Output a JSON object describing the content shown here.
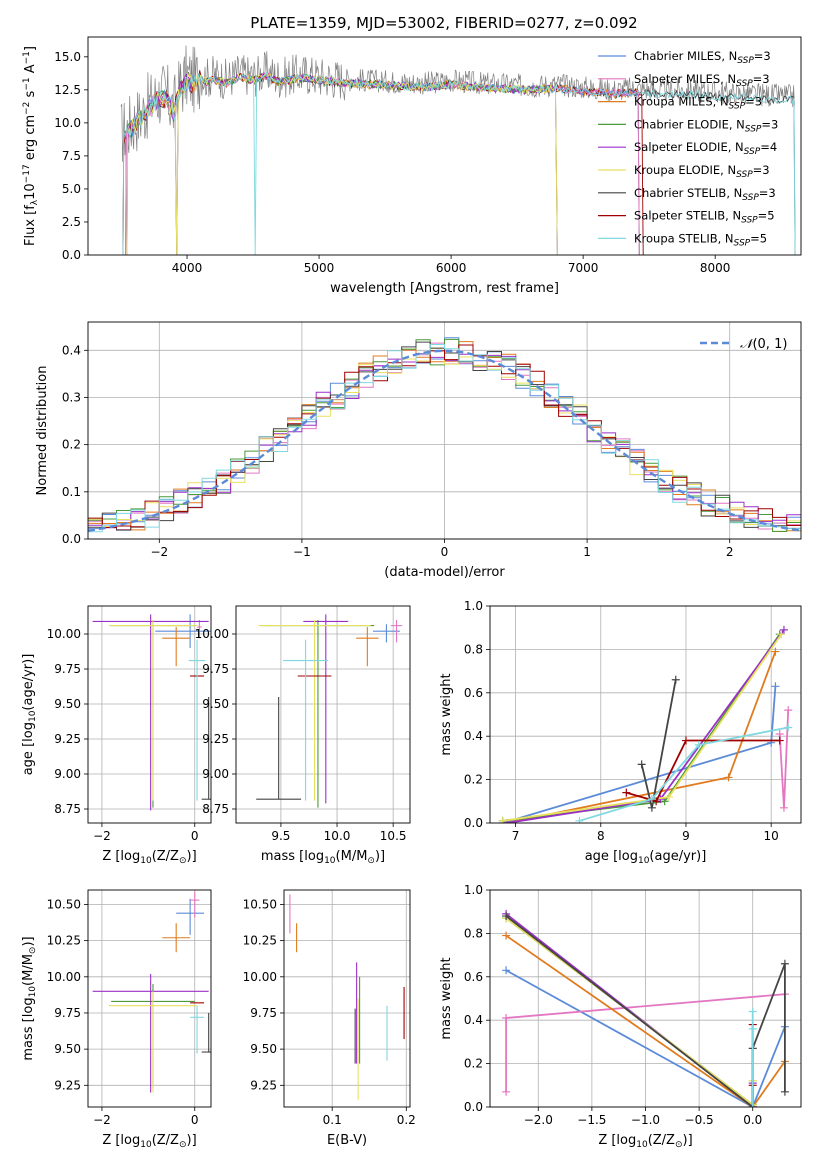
{
  "figure": {
    "title": "PLATE=1359, MJD=53002, FIBERID=0277, z=0.092"
  },
  "colors": {
    "Chabrier MILES": "#5b8bd8",
    "Salpeter MILES": "#e377c2",
    "Kroupa MILES": "#e07b1e",
    "Chabrier ELODIE": "#4a9a3a",
    "Salpeter ELODIE": "#9b30c8",
    "Kroupa ELODIE": "#e8e060",
    "Chabrier STELIB": "#444444",
    "Salpeter STELIB": "#a00000",
    "Kroupa STELIB": "#80d8e0",
    "normal": "#5b8bd8",
    "data": "#808080"
  },
  "chart_data": [
    {
      "id": "spectrum",
      "type": "line",
      "xlabel": "wavelength [Angstrom, rest frame]",
      "ylabel": "Flux [f$_\\lambda$10$^{-17}$ erg cm$^{-2}$ s$^{-1}$ A$^{-1}$]",
      "ylabel_parts": [
        "Flux [f",
        "λ",
        "10",
        "−17",
        " erg cm",
        "−2",
        " s",
        "−1",
        " A",
        "−1",
        "]"
      ],
      "xlim": [
        3250,
        8650
      ],
      "ylim": [
        0,
        16.5
      ],
      "xticks": [
        4000,
        5000,
        6000,
        7000,
        8000
      ],
      "yticks": [
        0.0,
        2.5,
        5.0,
        7.5,
        10.0,
        12.5,
        15.0
      ],
      "ytick_labels": [
        "0.0",
        "2.5",
        "5.0",
        "7.5",
        "10.0",
        "12.5",
        "15.0"
      ],
      "data_series": {
        "name": "data",
        "x": [
          3500,
          3550,
          3600,
          3650,
          3700,
          3750,
          3800,
          3850,
          3900,
          3950,
          4000,
          4050,
          4100,
          4150,
          4200,
          4300,
          4400,
          4500,
          4600,
          4700,
          4800,
          4900,
          5000,
          5200,
          5400,
          5600,
          5800,
          6000,
          6200,
          6400,
          6600,
          6800,
          7000,
          7200,
          7400,
          7600,
          7800,
          8000,
          8200,
          8400,
          8600
        ],
        "y": [
          9.2,
          9.6,
          10.1,
          10.6,
          11.2,
          11.8,
          12.2,
          12.0,
          11.0,
          12.8,
          13.5,
          13.2,
          13.7,
          13.4,
          13.6,
          13.3,
          13.8,
          13.5,
          13.9,
          13.4,
          13.6,
          13.7,
          13.5,
          13.3,
          13.2,
          13.1,
          13.0,
          13.2,
          13.0,
          12.9,
          12.8,
          12.9,
          12.7,
          12.5,
          12.6,
          12.4,
          12.5,
          12.3,
          12.2,
          12.1,
          12.0
        ]
      },
      "models": [
        {
          "name": "Chabrier MILES",
          "label": "Chabrier MILES, N",
          "nssp": "=3"
        },
        {
          "name": "Salpeter MILES",
          "label": "Salpeter MILES, N",
          "nssp": "=3"
        },
        {
          "name": "Kroupa MILES",
          "label": "Kroupa MILES, N",
          "nssp": "=3"
        },
        {
          "name": "Chabrier ELODIE",
          "label": "Chabrier ELODIE, N",
          "nssp": "=3"
        },
        {
          "name": "Salpeter ELODIE",
          "label": "Salpeter ELODIE, N",
          "nssp": "=4"
        },
        {
          "name": "Kroupa ELODIE",
          "label": "Kroupa ELODIE, N",
          "nssp": "=3"
        },
        {
          "name": "Chabrier STELIB",
          "label": "Chabrier STELIB, N",
          "nssp": "=3"
        },
        {
          "name": "Salpeter STELIB",
          "label": "Salpeter STELIB, N",
          "nssp": "=5"
        },
        {
          "name": "Kroupa STELIB",
          "label": "Kroupa STELIB, N",
          "nssp": "=5"
        }
      ],
      "nssp_subscript": "SSP",
      "legend": "top-right"
    },
    {
      "id": "residuals",
      "type": "line",
      "xlabel": "(data-model)/error",
      "ylabel": "Normed distribution",
      "xlim": [
        -2.5,
        2.5
      ],
      "ylim": [
        0,
        0.46
      ],
      "xticks": [
        -2,
        -1,
        0,
        1,
        2
      ],
      "xtick_labels": [
        "−2",
        "−1",
        "0",
        "1",
        "2"
      ],
      "yticks": [
        0.0,
        0.1,
        0.2,
        0.3,
        0.4
      ],
      "ytick_labels": [
        "0.0",
        "0.1",
        "0.2",
        "0.3",
        "0.4"
      ],
      "grid": true,
      "bin_width": 0.1,
      "normal_label": "(0, 1)",
      "normal_label_script": "𝒩",
      "legend": "top-right"
    },
    {
      "id": "age-vs-Z",
      "type": "scatter",
      "xlabel": "Z [log",
      "xlabel_sub": "10",
      "xlabel_tail": "(Z/Z",
      "xlabel_sun": "⊙",
      "xlabel_end": ")]",
      "ylabel": "age  [log",
      "ylabel_sub": "10",
      "ylabel_tail": "(age/yr)]",
      "xlim": [
        -2.3,
        0.35
      ],
      "ylim": [
        8.65,
        10.2
      ],
      "xticks": [
        -2,
        0
      ],
      "xtick_labels": [
        "−2",
        "0"
      ],
      "yticks": [
        8.75,
        9.0,
        9.25,
        9.5,
        9.75,
        10.0
      ],
      "ytick_labels": [
        "8.75",
        "9.00",
        "9.25",
        "9.50",
        "9.75",
        "10.00"
      ],
      "grid": true,
      "points": [
        {
          "model": "Chabrier MILES",
          "x": -0.1,
          "y": 10.02,
          "xerr": 0.75,
          "yerr": [
            0.12,
            0.12
          ]
        },
        {
          "model": "Salpeter MILES",
          "x": 0.1,
          "y": 10.05,
          "xerr": 0.05,
          "yerr": [
            0.08,
            0.05
          ]
        },
        {
          "model": "Kroupa MILES",
          "x": -0.4,
          "y": 9.97,
          "xerr": 0.3,
          "yerr": [
            0.2,
            0.08
          ]
        },
        {
          "model": "Chabrier ELODIE",
          "x": -0.9,
          "y": 10.06,
          "xerr": 0.9,
          "yerr": [
            1.3,
            0.04
          ]
        },
        {
          "model": "Salpeter ELODIE",
          "x": -0.95,
          "y": 10.09,
          "xerr": 1.25,
          "yerr": [
            1.35,
            0.05
          ]
        },
        {
          "model": "Kroupa ELODIE",
          "x": -0.9,
          "y": 10.06,
          "xerr": 0.95,
          "yerr": [
            1.25,
            0.04
          ]
        },
        {
          "model": "Chabrier STELIB",
          "x": 0.3,
          "y": 8.82,
          "xerr": 0.15,
          "yerr": [
            0.0,
            0.73
          ]
        },
        {
          "model": "Salpeter STELIB",
          "x": 0.05,
          "y": 9.7,
          "xerr": 0.15,
          "yerr": [
            0.0,
            0.0
          ]
        },
        {
          "model": "Kroupa STELIB",
          "x": 0.05,
          "y": 9.81,
          "xerr": 0.18,
          "yerr": [
            1.0,
            0.15
          ]
        }
      ]
    },
    {
      "id": "age-vs-mass",
      "type": "scatter",
      "xlabel": "mass [log",
      "xlabel_sub": "10",
      "xlabel_tail": "(M/M",
      "xlabel_sun": "⊙",
      "xlabel_end": ")]",
      "xlim": [
        9.1,
        10.65
      ],
      "ylim": [
        8.65,
        10.2
      ],
      "xticks": [
        9.5,
        10.0,
        10.5
      ],
      "xtick_labels": [
        "9.5",
        "10.0",
        "10.5"
      ],
      "yticks": [
        8.75,
        9.0,
        9.25,
        9.5,
        9.75,
        10.0
      ],
      "ytick_labels": [
        "8.75",
        "9.00",
        "9.25",
        "9.50",
        "9.75",
        "10.00"
      ],
      "grid": true,
      "points": [
        {
          "model": "Chabrier MILES",
          "x": 10.44,
          "y": 10.02,
          "xerr": 0.12,
          "yerr": [
            0.08,
            0.05
          ]
        },
        {
          "model": "Salpeter MILES",
          "x": 10.53,
          "y": 10.06,
          "xerr": 0.05,
          "yerr": [
            0.12,
            0.04
          ]
        },
        {
          "model": "Kroupa MILES",
          "x": 10.27,
          "y": 9.97,
          "xerr": 0.1,
          "yerr": [
            0.2,
            0.08
          ]
        },
        {
          "model": "Chabrier ELODIE",
          "x": 9.83,
          "y": 10.06,
          "xerr": 0.5,
          "yerr": [
            1.3,
            0.04
          ]
        },
        {
          "model": "Salpeter ELODIE",
          "x": 9.9,
          "y": 10.09,
          "xerr": 0.2,
          "yerr": [
            1.3,
            0.05
          ]
        },
        {
          "model": "Kroupa ELODIE",
          "x": 9.8,
          "y": 10.06,
          "xerr": 0.5,
          "yerr": [
            1.25,
            0.04
          ]
        },
        {
          "model": "Chabrier STELIB",
          "x": 9.48,
          "y": 8.82,
          "xerr": 0.2,
          "yerr": [
            0.0,
            0.73
          ]
        },
        {
          "model": "Salpeter STELIB",
          "x": 9.8,
          "y": 9.7,
          "xerr": 0.15,
          "yerr": [
            0.0,
            0.0
          ]
        },
        {
          "model": "Kroupa STELIB",
          "x": 9.72,
          "y": 9.81,
          "xerr": 0.2,
          "yerr": [
            1.0,
            0.15
          ]
        }
      ]
    },
    {
      "id": "weight-vs-age",
      "type": "line",
      "xlabel": "age  [log",
      "xlabel_sub": "10",
      "xlabel_tail": "(age/yr)]",
      "ylabel": "mass weight",
      "xlim": [
        6.7,
        10.35
      ],
      "ylim": [
        0,
        1.0
      ],
      "xticks": [
        7,
        8,
        9,
        10
      ],
      "yticks": [
        0.0,
        0.2,
        0.4,
        0.6,
        0.8,
        1.0
      ],
      "ytick_labels": [
        "0.0",
        "0.2",
        "0.4",
        "0.6",
        "0.8",
        "1.0"
      ],
      "grid": true,
      "series": [
        {
          "name": "Chabrier MILES",
          "x": [
            6.85,
            10.0,
            10.05
          ],
          "y": [
            0.0,
            0.37,
            0.63
          ]
        },
        {
          "name": "Salpeter MILES",
          "x": [
            10.1,
            10.15,
            10.2
          ],
          "y": [
            0.41,
            0.07,
            0.52
          ]
        },
        {
          "name": "Kroupa MILES",
          "x": [
            6.9,
            9.5,
            10.05
          ],
          "y": [
            0.0,
            0.21,
            0.79
          ]
        },
        {
          "name": "Chabrier ELODIE",
          "x": [
            6.85,
            8.75,
            10.1
          ],
          "y": [
            0.01,
            0.1,
            0.87
          ]
        },
        {
          "name": "Salpeter ELODIE",
          "x": [
            6.9,
            8.7,
            10.15
          ],
          "y": [
            0.0,
            0.11,
            0.89
          ]
        },
        {
          "name": "Kroupa ELODIE",
          "x": [
            6.85,
            8.8,
            10.12
          ],
          "y": [
            0.01,
            0.12,
            0.87
          ]
        },
        {
          "name": "Chabrier STELIB",
          "x": [
            8.48,
            8.6,
            8.88
          ],
          "y": [
            0.27,
            0.07,
            0.66
          ]
        },
        {
          "name": "Salpeter STELIB",
          "x": [
            8.3,
            8.65,
            9.0,
            10.1
          ],
          "y": [
            0.14,
            0.1,
            0.38,
            0.38
          ]
        },
        {
          "name": "Kroupa STELIB",
          "x": [
            7.75,
            8.6,
            9.15,
            10.2
          ],
          "y": [
            0.01,
            0.11,
            0.36,
            0.44
          ]
        }
      ]
    },
    {
      "id": "mass-vs-Z",
      "type": "scatter",
      "xlabel": "Z [log",
      "xlabel_sub": "10",
      "xlabel_tail": "(Z/Z",
      "xlabel_sun": "⊙",
      "xlabel_end": ")]",
      "ylabel": "mass [log",
      "ylabel_sub": "10",
      "ylabel_tail": "(M/M",
      "ylabel_sun": "⊙",
      "ylabel_end": ")]",
      "xlim": [
        -2.3,
        0.35
      ],
      "ylim": [
        9.1,
        10.6
      ],
      "xticks": [
        -2,
        0
      ],
      "xtick_labels": [
        "−2",
        "0"
      ],
      "yticks": [
        9.25,
        9.5,
        9.75,
        10.0,
        10.25,
        10.5
      ],
      "ytick_labels": [
        "9.25",
        "9.50",
        "9.75",
        "10.00",
        "10.25",
        "10.50"
      ],
      "grid": true,
      "points": [
        {
          "model": "Chabrier MILES",
          "x": -0.1,
          "y": 10.44,
          "xerr": 0.3,
          "yerr": [
            0.15,
            0.1
          ]
        },
        {
          "model": "Salpeter MILES",
          "x": 0.0,
          "y": 10.53,
          "xerr": 0.1,
          "yerr": [
            0.12,
            0.06
          ]
        },
        {
          "model": "Kroupa MILES",
          "x": -0.4,
          "y": 10.27,
          "xerr": 0.3,
          "yerr": [
            0.1,
            0.1
          ]
        },
        {
          "model": "Chabrier ELODIE",
          "x": -0.9,
          "y": 9.83,
          "xerr": 0.9,
          "yerr": [
            0.6,
            0.12
          ]
        },
        {
          "model": "Salpeter ELODIE",
          "x": -0.95,
          "y": 9.9,
          "xerr": 1.25,
          "yerr": [
            0.7,
            0.12
          ]
        },
        {
          "model": "Kroupa ELODIE",
          "x": -0.9,
          "y": 9.8,
          "xerr": 0.95,
          "yerr": [
            0.6,
            0.1
          ]
        },
        {
          "model": "Chabrier STELIB",
          "x": 0.3,
          "y": 9.48,
          "xerr": 0.15,
          "yerr": [
            0.0,
            0.27
          ]
        },
        {
          "model": "Salpeter STELIB",
          "x": 0.05,
          "y": 9.82,
          "xerr": 0.15,
          "yerr": [
            0.0,
            0.0
          ]
        },
        {
          "model": "Kroupa STELIB",
          "x": 0.05,
          "y": 9.72,
          "xerr": 0.15,
          "yerr": [
            0.25,
            0.08
          ]
        }
      ]
    },
    {
      "id": "mass-vs-ebv",
      "type": "scatter",
      "xlabel": "E(B-V)",
      "xlim": [
        0.035,
        0.205
      ],
      "ylim": [
        9.1,
        10.6
      ],
      "xticks": [
        0.1,
        0.2
      ],
      "xtick_labels": [
        "0.1",
        "0.2"
      ],
      "yticks": [
        9.25,
        9.5,
        9.75,
        10.0,
        10.25,
        10.5
      ],
      "ytick_labels": [
        "9.25",
        "9.50",
        "9.75",
        "10.00",
        "10.25",
        "10.50"
      ],
      "grid": true,
      "points": [
        {
          "model": "Salpeter MILES",
          "x": 0.043,
          "y": 10.45,
          "yerr": [
            0.15,
            0.12
          ]
        },
        {
          "model": "Kroupa MILES",
          "x": 0.052,
          "y": 10.27,
          "yerr": [
            0.1,
            0.1
          ]
        },
        {
          "model": "Chabrier MILES",
          "x": 0.043,
          "y": 10.45,
          "yerr": [
            0.0,
            0.0
          ]
        },
        {
          "model": "Chabrier STELIB",
          "x": 0.131,
          "y": 9.6,
          "yerr": [
            0.2,
            0.18
          ]
        },
        {
          "model": "Salpeter ELODIE",
          "x": 0.133,
          "y": 9.8,
          "yerr": [
            0.4,
            0.3
          ]
        },
        {
          "model": "Kroupa ELODIE",
          "x": 0.135,
          "y": 9.55,
          "yerr": [
            0.4,
            0.3
          ]
        },
        {
          "model": "Chabrier ELODIE",
          "x": 0.137,
          "y": 9.7,
          "yerr": [
            0.3,
            0.3
          ]
        },
        {
          "model": "Kroupa STELIB",
          "x": 0.174,
          "y": 9.6,
          "yerr": [
            0.18,
            0.2
          ]
        },
        {
          "model": "Salpeter STELIB",
          "x": 0.197,
          "y": 9.75,
          "yerr": [
            0.18,
            0.18
          ]
        }
      ]
    },
    {
      "id": "weight-vs-Z",
      "type": "line",
      "xlabel": "Z [log",
      "xlabel_sub": "10",
      "xlabel_tail": "(Z/Z",
      "xlabel_sun": "⊙",
      "xlabel_end": ")]",
      "ylabel": "mass weight",
      "xlim": [
        -2.45,
        0.45
      ],
      "ylim": [
        0,
        1.0
      ],
      "xticks": [
        -2.0,
        -1.5,
        -1.0,
        -0.5,
        0.0
      ],
      "xtick_labels": [
        "−2.0",
        "−1.5",
        "−1.0",
        "−0.5",
        "0.0"
      ],
      "yticks": [
        0.0,
        0.2,
        0.4,
        0.6,
        0.8,
        1.0
      ],
      "ytick_labels": [
        "0.0",
        "0.2",
        "0.4",
        "0.6",
        "0.8",
        "1.0"
      ],
      "grid": true,
      "series": [
        {
          "name": "Chabrier MILES",
          "x": [
            -2.3,
            0.0,
            0.3
          ],
          "y": [
            0.63,
            0.0,
            0.37
          ]
        },
        {
          "name": "Salpeter MILES",
          "x": [
            -2.3,
            -2.3,
            0.3
          ],
          "y": [
            0.07,
            0.41,
            0.52
          ]
        },
        {
          "name": "Kroupa MILES",
          "x": [
            -2.3,
            0.0,
            0.3
          ],
          "y": [
            0.79,
            0.0,
            0.21
          ]
        },
        {
          "name": "Chabrier ELODIE",
          "x": [
            -2.3,
            0.0,
            0.0
          ],
          "y": [
            0.87,
            0.01,
            0.12
          ]
        },
        {
          "name": "Salpeter ELODIE",
          "x": [
            -2.3,
            0.0,
            0.0
          ],
          "y": [
            0.89,
            0.0,
            0.11
          ]
        },
        {
          "name": "Kroupa ELODIE",
          "x": [
            -2.3,
            0.0,
            0.0
          ],
          "y": [
            0.87,
            0.01,
            0.12
          ]
        },
        {
          "name": "Chabrier STELIB",
          "x": [
            -2.3,
            0.0,
            0.0,
            0.3,
            0.3
          ],
          "y": [
            0.88,
            0.0,
            0.27,
            0.66,
            0.07
          ]
        },
        {
          "name": "Salpeter STELIB",
          "x": [
            0.0,
            0.0,
            0.0
          ],
          "y": [
            0.0,
            0.38,
            0.1
          ]
        },
        {
          "name": "Kroupa STELIB",
          "x": [
            0.0,
            0.0,
            0.0
          ],
          "y": [
            0.0,
            0.44,
            0.36
          ]
        }
      ]
    }
  ]
}
